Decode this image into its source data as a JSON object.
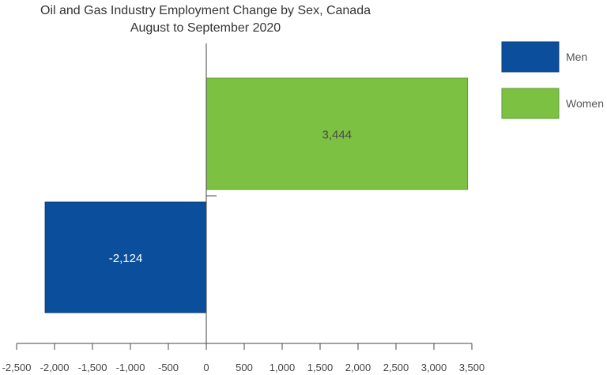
{
  "chart_data": {
    "type": "bar",
    "orientation": "horizontal",
    "title": "Oil and Gas Industry Employment Change by Sex, Canada",
    "subtitle": "August to September 2020",
    "xlabel": "",
    "ylabel": "",
    "xlim": [
      -2500,
      3500
    ],
    "xticks": [
      -2500,
      -2000,
      -1500,
      -1000,
      -500,
      0,
      500,
      1000,
      1500,
      2000,
      2500,
      3000,
      3500
    ],
    "xtick_labels": [
      "-2,500",
      "-2,000",
      "-1,500",
      "-1,000",
      "-500",
      "0",
      "500",
      "1,000",
      "1,500",
      "2,000",
      "2,500",
      "3,000",
      "3,500"
    ],
    "grid": false,
    "legend_position": "right",
    "series": [
      {
        "name": "Women",
        "value": 3444,
        "label": "3,444",
        "color": "#7dc142",
        "border": "#5f9a33",
        "label_color": "#4a4a4a"
      },
      {
        "name": "Men",
        "value": -2124,
        "label": "-2,124",
        "color": "#0b4f9c",
        "border": "#083c78",
        "label_color": "#ffffff"
      }
    ]
  },
  "legend": [
    {
      "name": "Men",
      "color": "#0b4f9c",
      "border": "#083c78"
    },
    {
      "name": "Women",
      "color": "#7dc142",
      "border": "#5f9a33"
    }
  ]
}
